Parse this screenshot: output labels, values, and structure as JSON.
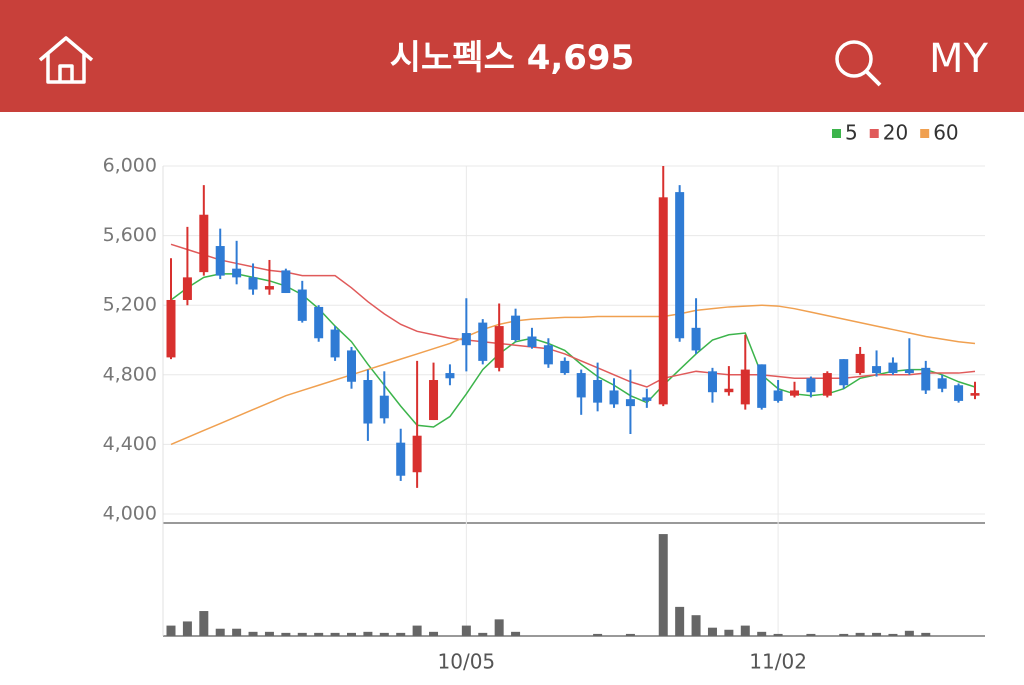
{
  "header": {
    "title": "시노펙스 4,695",
    "right_label": "MY"
  },
  "chart_data": {
    "type": "candlestick",
    "categories": [
      null,
      null,
      null,
      null,
      null,
      null,
      null,
      null,
      null,
      null,
      null,
      null,
      null,
      null,
      null,
      null,
      null,
      null,
      "10/05",
      null,
      null,
      null,
      null,
      null,
      null,
      null,
      null,
      null,
      null,
      null,
      null,
      null,
      null,
      null,
      null,
      null,
      null,
      "11/02",
      null,
      null,
      null,
      null,
      null,
      null,
      null,
      null,
      null,
      null,
      null,
      null
    ],
    "ylim": [
      4000,
      6000
    ],
    "yticks": [
      {
        "value": 4000,
        "label": "4,000"
      },
      {
        "value": 4400,
        "label": "4,400"
      },
      {
        "value": 4800,
        "label": "4,800"
      },
      {
        "value": 5200,
        "label": "5,200"
      },
      {
        "value": 5600,
        "label": "5,600"
      },
      {
        "value": 6000,
        "label": "6,000"
      }
    ],
    "grid": true,
    "legend": "top-right",
    "up_color": "#d8302e",
    "down_color": "#2f7bd4",
    "open": [
      4900,
      5230,
      5390,
      5540,
      5410,
      5360,
      5290,
      5400,
      5290,
      5190,
      5060,
      4940,
      4770,
      4680,
      4410,
      4240,
      4540,
      4810,
      5040,
      5100,
      4840,
      5140,
      5020,
      4970,
      4880,
      4810,
      4770,
      4710,
      4660,
      4670,
      4630,
      5850,
      5070,
      4820,
      4700,
      4630,
      4860,
      4710,
      4680,
      4780,
      4680,
      4890,
      4810,
      4850,
      4870,
      4830,
      4840,
      4780,
      4740,
      4680
    ],
    "high": [
      5470,
      5650,
      5890,
      5640,
      5570,
      5440,
      5460,
      5410,
      5340,
      5200,
      5080,
      4960,
      4830,
      4820,
      4490,
      4880,
      4870,
      4860,
      5240,
      5120,
      5210,
      5180,
      5070,
      5010,
      4900,
      4830,
      4870,
      4780,
      4830,
      4720,
      6000,
      5890,
      5240,
      4840,
      4850,
      5030,
      4860,
      4770,
      4760,
      4790,
      4820,
      4890,
      4960,
      4940,
      4900,
      5010,
      4880,
      4800,
      4750,
      4760
    ],
    "low": [
      4890,
      5200,
      5370,
      5350,
      5320,
      5260,
      5260,
      5270,
      5100,
      4990,
      4880,
      4720,
      4420,
      4520,
      4190,
      4150,
      4540,
      4740,
      4820,
      4860,
      4820,
      4990,
      4950,
      4840,
      4800,
      4570,
      4590,
      4610,
      4460,
      4610,
      4620,
      4990,
      4920,
      4640,
      4680,
      4600,
      4600,
      4640,
      4670,
      4670,
      4670,
      4720,
      4800,
      4790,
      4800,
      4800,
      4690,
      4700,
      4640,
      4660
    ],
    "close": [
      5230,
      5360,
      5720,
      5370,
      5360,
      5290,
      5310,
      5270,
      5110,
      5010,
      4900,
      4760,
      4520,
      4550,
      4220,
      4450,
      4770,
      4780,
      4970,
      4880,
      5080,
      5000,
      4960,
      4860,
      4810,
      4670,
      4640,
      4630,
      4620,
      4650,
      5820,
      5010,
      4940,
      4700,
      4720,
      4830,
      4610,
      4650,
      4710,
      4700,
      4810,
      4740,
      4920,
      4810,
      4810,
      4810,
      4710,
      4720,
      4650,
      4695
    ],
    "series": [
      {
        "name": "5",
        "color": "#3cb44b",
        "values": [
          5230,
          5300,
          5360,
          5380,
          5380,
          5360,
          5340,
          5310,
          5260,
          5180,
          5080,
          4990,
          4860,
          4740,
          4620,
          4510,
          4500,
          4560,
          4690,
          4830,
          4920,
          4990,
          5010,
          4980,
          4940,
          4860,
          4790,
          4740,
          4680,
          4640,
          4740,
          4830,
          4920,
          5000,
          5030,
          5040,
          4800,
          4720,
          4690,
          4680,
          4690,
          4720,
          4780,
          4800,
          4820,
          4830,
          4830,
          4800,
          4760,
          4730
        ]
      },
      {
        "name": "20",
        "color": "#e05a5a",
        "values": [
          5550,
          5520,
          5490,
          5460,
          5440,
          5420,
          5400,
          5390,
          5370,
          5370,
          5370,
          5300,
          5220,
          5150,
          5090,
          5050,
          5030,
          5010,
          5000,
          4990,
          4980,
          4970,
          4960,
          4950,
          4920,
          4880,
          4840,
          4800,
          4760,
          4730,
          4780,
          4800,
          4820,
          4810,
          4800,
          4800,
          4800,
          4790,
          4780,
          4780,
          4780,
          4780,
          4790,
          4800,
          4800,
          4800,
          4810,
          4810,
          4810,
          4820
        ]
      },
      {
        "name": "60",
        "color": "#f0a050",
        "values": [
          4400,
          4440,
          4480,
          4520,
          4560,
          4600,
          4640,
          4680,
          4710,
          4740,
          4770,
          4800,
          4830,
          4860,
          4890,
          4920,
          4950,
          4980,
          5020,
          5060,
          5090,
          5110,
          5120,
          5125,
          5130,
          5130,
          5135,
          5135,
          5135,
          5135,
          5135,
          5150,
          5170,
          5180,
          5190,
          5195,
          5200,
          5195,
          5180,
          5160,
          5140,
          5120,
          5100,
          5080,
          5060,
          5040,
          5020,
          5005,
          4990,
          4980
        ]
      }
    ],
    "volume": [
      10,
      14,
      24,
      7,
      7,
      4,
      4,
      3,
      3,
      3,
      3,
      3,
      4,
      3,
      3,
      10,
      4,
      0,
      10,
      3,
      16,
      4,
      0,
      0,
      0,
      0,
      2,
      0,
      2,
      0,
      98,
      28,
      20,
      8,
      6,
      10,
      4,
      2,
      0,
      2,
      0,
      2,
      3,
      3,
      2,
      5,
      3,
      0,
      0,
      0
    ],
    "volume_ylim": [
      0,
      100
    ],
    "volume_color": "#666666"
  }
}
